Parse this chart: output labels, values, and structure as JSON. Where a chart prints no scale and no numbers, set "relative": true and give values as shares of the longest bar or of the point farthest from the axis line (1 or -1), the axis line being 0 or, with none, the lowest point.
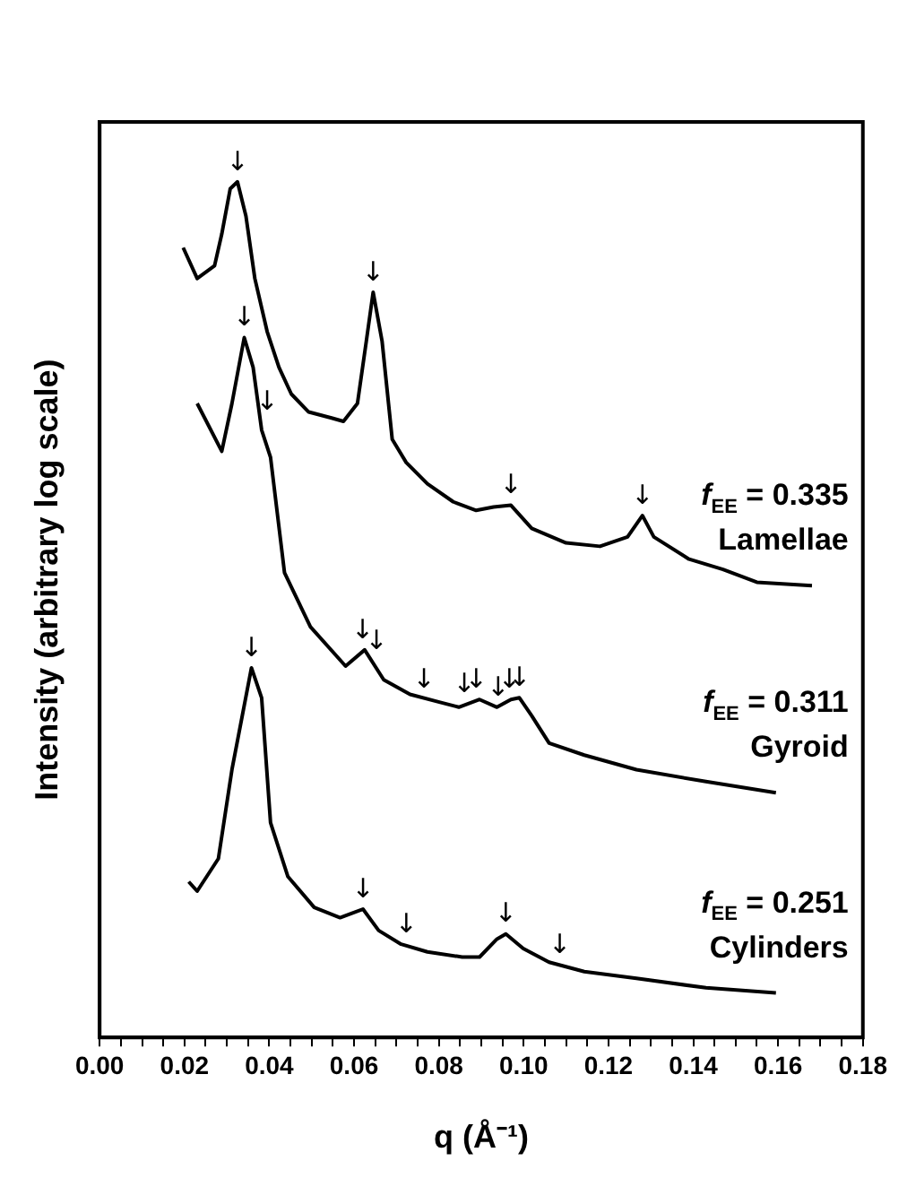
{
  "chart_data": {
    "type": "line",
    "relative": true,
    "xlabel": "q (Å⁻¹)",
    "ylabel": "Intensity (arbitrary log scale)",
    "xlim": [
      0,
      0.18
    ],
    "xticks": [
      {
        "value": 0,
        "label": "0.00"
      },
      {
        "value": 0.005,
        "label": null
      },
      {
        "value": 0.01,
        "label": null
      },
      {
        "value": 0.015,
        "label": null
      },
      {
        "value": 0.02,
        "label": "0.02"
      },
      {
        "value": 0.025,
        "label": null
      },
      {
        "value": 0.03,
        "label": null
      },
      {
        "value": 0.035,
        "label": null
      },
      {
        "value": 0.04,
        "label": "0.04"
      },
      {
        "value": 0.045,
        "label": null
      },
      {
        "value": 0.05,
        "label": null
      },
      {
        "value": 0.055,
        "label": null
      },
      {
        "value": 0.06,
        "label": "0.06"
      },
      {
        "value": 0.065,
        "label": null
      },
      {
        "value": 0.07,
        "label": null
      },
      {
        "value": 0.075,
        "label": null
      },
      {
        "value": 0.08,
        "label": "0.08"
      },
      {
        "value": 0.085,
        "label": null
      },
      {
        "value": 0.09,
        "label": null
      },
      {
        "value": 0.095,
        "label": null
      },
      {
        "value": 0.1,
        "label": "0.10"
      },
      {
        "value": 0.105,
        "label": null
      },
      {
        "value": 0.11,
        "label": null
      },
      {
        "value": 0.115,
        "label": null
      },
      {
        "value": 0.12,
        "label": "0.12"
      },
      {
        "value": 0.125,
        "label": null
      },
      {
        "value": 0.13,
        "label": null
      },
      {
        "value": 0.135,
        "label": null
      },
      {
        "value": 0.14,
        "label": "0.14"
      },
      {
        "value": 0.145,
        "label": null
      },
      {
        "value": 0.15,
        "label": null
      },
      {
        "value": 0.155,
        "label": null
      },
      {
        "value": 0.16,
        "label": "0.16"
      },
      {
        "value": 0.165,
        "label": null
      },
      {
        "value": 0.17,
        "label": null
      },
      {
        "value": 0.175,
        "label": null
      },
      {
        "value": 0.18,
        "label": "0.18"
      }
    ],
    "grid": false,
    "legend": false,
    "marker": "none",
    "line_style": "solid",
    "series": [
      {
        "name": "f$_{EE}$ = 0.335\nLamellae",
        "color": "#000000",
        "x": [
          0.0197,
          0.023,
          0.0271,
          0.0288,
          0.0308,
          0.0325,
          0.0345,
          0.0366,
          0.0395,
          0.0423,
          0.0452,
          0.0493,
          0.0547,
          0.0575,
          0.0608,
          0.0629,
          0.0645,
          0.0666,
          0.069,
          0.0723,
          0.0773,
          0.0834,
          0.0888,
          0.0929,
          0.097,
          0.1019,
          0.11,
          0.118,
          0.1245,
          0.128,
          0.1307,
          0.139,
          0.147,
          0.155,
          0.168
        ],
        "values": [
          0.923,
          0.887,
          0.902,
          0.939,
          0.992,
          1,
          0.96,
          0.887,
          0.825,
          0.783,
          0.752,
          0.731,
          0.724,
          0.72,
          0.741,
          0.814,
          0.871,
          0.814,
          0.699,
          0.672,
          0.647,
          0.626,
          0.616,
          0.62,
          0.622,
          0.595,
          0.578,
          0.574,
          0.585,
          0.61,
          0.585,
          0.559,
          0.547,
          0.532,
          0.528
        ]
      },
      {
        "name": "f$_{EE}$ = 0.311\nGyroid",
        "color": "#000000",
        "x": [
          0.023,
          0.0288,
          0.0312,
          0.0341,
          0.0362,
          0.0382,
          0.0403,
          0.0436,
          0.0497,
          0.058,
          0.0625,
          0.067,
          0.0732,
          0.0801,
          0.0847,
          0.0896,
          0.0937,
          0.097,
          0.099,
          0.1019,
          0.106,
          0.1143,
          0.1266,
          0.143,
          0.1595
        ],
        "values": [
          0.741,
          0.685,
          0.741,
          0.818,
          0.783,
          0.71,
          0.678,
          0.543,
          0.48,
          0.434,
          0.453,
          0.418,
          0.401,
          0.392,
          0.386,
          0.395,
          0.386,
          0.395,
          0.397,
          0.376,
          0.344,
          0.33,
          0.313,
          0.299,
          0.286
        ]
      },
      {
        "name": "f$_{EE}$ = 0.251\nCylinders",
        "color": "#000000",
        "x": [
          0.021,
          0.023,
          0.028,
          0.0312,
          0.0358,
          0.0382,
          0.0403,
          0.0444,
          0.0506,
          0.0567,
          0.0621,
          0.0658,
          0.0711,
          0.0773,
          0.0855,
          0.0896,
          0.0937,
          0.0958,
          0.0999,
          0.106,
          0.1143,
          0.1266,
          0.143,
          0.1595
        ],
        "values": [
          0.182,
          0.171,
          0.209,
          0.313,
          0.432,
          0.397,
          0.251,
          0.188,
          0.152,
          0.14,
          0.15,
          0.125,
          0.109,
          0.1,
          0.094,
          0.094,
          0.115,
          0.121,
          0.104,
          0.088,
          0.077,
          0.069,
          0.058,
          0.052
        ]
      }
    ],
    "annotations": [
      {
        "text": "↓",
        "x": 0.0325,
        "y": 1
      },
      {
        "text": "↓",
        "x": 0.0645,
        "y": 0.871
      },
      {
        "text": "↓",
        "x": 0.097,
        "y": 0.622
      },
      {
        "text": "↓",
        "x": 0.128,
        "y": 0.61
      },
      {
        "text": "↓",
        "x": 0.0341,
        "y": 0.818
      },
      {
        "text": "↓",
        "x": 0.0395,
        "y": 0.72
      },
      {
        "text": "↓",
        "x": 0.062,
        "y": 0.453
      },
      {
        "text": "↓",
        "x": 0.0653,
        "y": 0.44
      },
      {
        "text": "↓",
        "x": 0.0765,
        "y": 0.395
      },
      {
        "text": "↓",
        "x": 0.086,
        "y": 0.39
      },
      {
        "text": "↓",
        "x": 0.0888,
        "y": 0.395
      },
      {
        "text": "↓",
        "x": 0.094,
        "y": 0.386
      },
      {
        "text": "↓",
        "x": 0.0966,
        "y": 0.395
      },
      {
        "text": "↓",
        "x": 0.099,
        "y": 0.397
      },
      {
        "text": "↓",
        "x": 0.0358,
        "y": 0.432
      },
      {
        "text": "↓",
        "x": 0.0621,
        "y": 0.15
      },
      {
        "text": "↓",
        "x": 0.0723,
        "y": 0.109
      },
      {
        "text": "↓",
        "x": 0.0958,
        "y": 0.121
      },
      {
        "text": "↓",
        "x": 0.1085,
        "y": 0.085
      }
    ]
  }
}
